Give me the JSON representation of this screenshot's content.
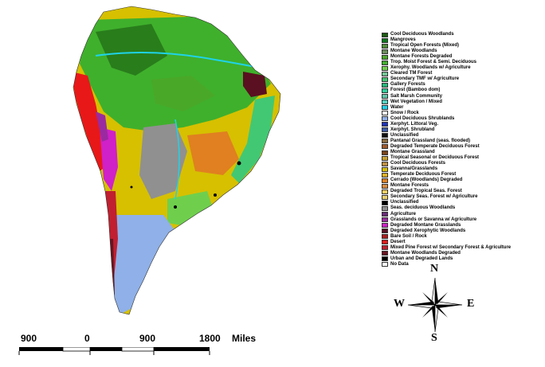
{
  "legend": [
    {
      "label": "Cool Deciduous Woodlands",
      "color": "#1a5c10"
    },
    {
      "label": "Mangroves",
      "color": "#0b7a1d"
    },
    {
      "label": "Tropical Open Forests (Mixed)",
      "color": "#4f8f3a"
    },
    {
      "label": "Montane Woodlands",
      "color": "#6b8e5a"
    },
    {
      "label": "Montane Forests Degraded",
      "color": "#4aa828"
    },
    {
      "label": "Trop. Moist Forest & Semi. Deciduous",
      "color": "#3fb02c"
    },
    {
      "label": "Xerophy. Woodlands w/ Agriculture",
      "color": "#6fcf4d"
    },
    {
      "label": "Cleared TM Forest",
      "color": "#72c896"
    },
    {
      "label": "Secondary TMF w/ Agriculture",
      "color": "#42c873"
    },
    {
      "label": "Gallery Forests",
      "color": "#24b87a"
    },
    {
      "label": "Forest (Bamboo dom)",
      "color": "#2dcf9a"
    },
    {
      "label": "Salt Marsh Community",
      "color": "#5fc5a8"
    },
    {
      "label": "Wet Vegetation / Mixed",
      "color": "#52d3c0"
    },
    {
      "label": "Water",
      "color": "#1fd3e8"
    },
    {
      "label": "Snow / Rock",
      "color": "#ffffff"
    },
    {
      "label": "Cool Deciduous Shrublands",
      "color": "#8fb0e8"
    },
    {
      "label": "Xerphyt. Littoral Veg.",
      "color": "#1f33b8"
    },
    {
      "label": "Xerphyt. Shrubland",
      "color": "#3b5aa8"
    },
    {
      "label": "Unclassified",
      "color": "#111111"
    },
    {
      "label": "Pantanal Grassland (seas. flooded)",
      "color": "#8a6a3c"
    },
    {
      "label": "Degraded Temperate Deciduous Forest",
      "color": "#a25a28"
    },
    {
      "label": "Montane Grassland",
      "color": "#7a4318"
    },
    {
      "label": "Tropical Seasonal or Deciduous Forest",
      "color": "#c8a030"
    },
    {
      "label": "Cool Deciduous Forests",
      "color": "#c09040"
    },
    {
      "label": "Savanna/Grasslands",
      "color": "#d6c000"
    },
    {
      "label": "Temperate Deciduous Forest",
      "color": "#e0b020"
    },
    {
      "label": "Cerrado (Woodlands) Degraded",
      "color": "#e08020"
    },
    {
      "label": "Montane Forests",
      "color": "#d88a40"
    },
    {
      "label": "Degraded Tropical Seas. Forest",
      "color": "#f2d060"
    },
    {
      "label": "Secondary Seas. Forest w/ Agriculture",
      "color": "#e8d070"
    },
    {
      "label": "Unclassified",
      "color": "#000000"
    },
    {
      "label": "Seas. deciduous Woodlands",
      "color": "#909090"
    },
    {
      "label": "Agriculture",
      "color": "#6a2c7a"
    },
    {
      "label": "Grasslands or Savanna w/ Agriculture",
      "color": "#9a2aa0"
    },
    {
      "label": "Degraded Montane Grasslands",
      "color": "#d020c8"
    },
    {
      "label": "Degraded Xerophytic Woodlands",
      "color": "#5a1020"
    },
    {
      "label": "Bare Soil / Rock",
      "color": "#b01c1c"
    },
    {
      "label": "Desert",
      "color": "#e81818"
    },
    {
      "label": "Mixed Pine Forest w/ Secondary Forest & Agriculture",
      "color": "#c02030"
    },
    {
      "label": "Montane Woodlands Degraded",
      "color": "#6a1420"
    },
    {
      "label": "Urban and Degraded Lands",
      "color": "#000000"
    },
    {
      "label": "No Data",
      "color": "#ffffff"
    }
  ],
  "scale_bar": {
    "labels": [
      "900",
      "0",
      "900",
      "1800"
    ],
    "unit": "Miles"
  },
  "compass": {
    "n": "N",
    "s": "S",
    "e": "E",
    "w": "W"
  }
}
